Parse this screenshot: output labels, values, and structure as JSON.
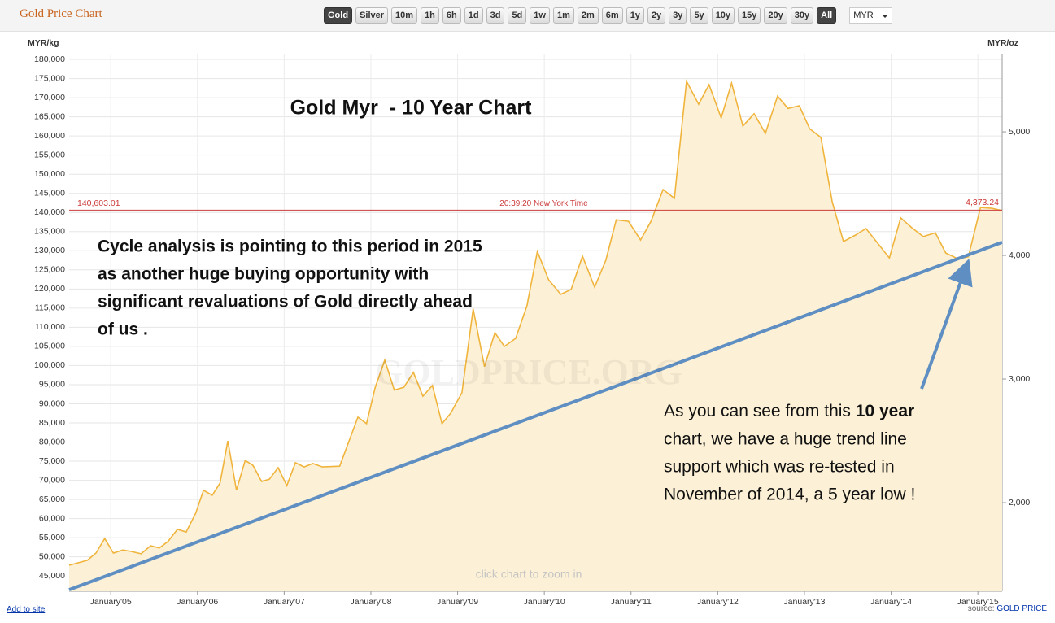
{
  "header": {
    "title": "Gold Price Chart",
    "buttons": [
      "Gold",
      "Silver",
      "10m",
      "1h",
      "6h",
      "1d",
      "3d",
      "5d",
      "1w",
      "1m",
      "2m",
      "6m",
      "1y",
      "2y",
      "3y",
      "5y",
      "10y",
      "15y",
      "20y",
      "30y",
      "All"
    ],
    "selected": [
      0,
      20
    ],
    "currency": "MYR",
    "add_link": "Add to site",
    "source_prefix": "source:",
    "source_link": "GOLD PRICE"
  },
  "chart_data": {
    "type": "area",
    "title": "Gold Myr  - 10 Year Chart",
    "y_label": "MYR/kg",
    "y2_label": "MYR/oz",
    "x": [
      2004.52,
      2004.73,
      2004.83,
      2004.93,
      2005.03,
      2005.14,
      2005.24,
      2005.35,
      2005.46,
      2005.56,
      2005.66,
      2005.77,
      2005.87,
      2005.98,
      2006.07,
      2006.17,
      2006.26,
      2006.35,
      2006.45,
      2006.55,
      2006.64,
      2006.74,
      2006.83,
      2006.93,
      2007.03,
      2007.13,
      2007.23,
      2007.33,
      2007.44,
      2007.64,
      2007.85,
      2007.95,
      2008.05,
      2008.16,
      2008.27,
      2008.38,
      2008.49,
      2008.6,
      2008.71,
      2008.82,
      2008.92,
      2009.05,
      2009.18,
      2009.31,
      2009.43,
      2009.54,
      2009.67,
      2009.8,
      2009.92,
      2010.05,
      2010.19,
      2010.31,
      2010.44,
      2010.58,
      2010.71,
      2010.83,
      2010.97,
      2011.11,
      2011.23,
      2011.37,
      2011.5,
      2011.64,
      2011.78,
      2011.9,
      2012.04,
      2012.16,
      2012.29,
      2012.42,
      2012.55,
      2012.69,
      2012.81,
      2012.94,
      2013.06,
      2013.19,
      2013.32,
      2013.45,
      2013.59,
      2013.71,
      2013.85,
      2013.98,
      2014.11,
      2014.24,
      2014.37,
      2014.51,
      2014.63,
      2014.77,
      2014.89,
      2015.03,
      2015.16,
      2015.28
    ],
    "values": [
      47800,
      49100,
      51000,
      54800,
      51000,
      51800,
      51400,
      50800,
      52900,
      52300,
      54000,
      57200,
      56500,
      61400,
      67400,
      66100,
      69300,
      80300,
      67400,
      75200,
      73900,
      69700,
      70300,
      73300,
      68600,
      74600,
      73500,
      74400,
      73500,
      73700,
      86500,
      84800,
      94300,
      101400,
      93600,
      94300,
      98200,
      92000,
      94800,
      84800,
      87500,
      92900,
      114800,
      99700,
      108600,
      105000,
      107100,
      115600,
      129800,
      122400,
      118600,
      119900,
      128600,
      120500,
      127500,
      138100,
      137700,
      132800,
      137700,
      146000,
      143700,
      174300,
      168300,
      173400,
      164700,
      173800,
      162600,
      165800,
      160700,
      170400,
      167200,
      167900,
      161900,
      159600,
      142800,
      132400,
      134100,
      135800,
      131800,
      128100,
      138600,
      136000,
      133700,
      134700,
      129400,
      127900,
      128400,
      141300,
      141100,
      140500
    ],
    "color": "#f0b43c",
    "fill": "#fcf1d6",
    "xlim": [
      2004.52,
      2015.28
    ],
    "xticks": [
      {
        "value": 2005,
        "label": "January'05"
      },
      {
        "value": 2006,
        "label": "January'06"
      },
      {
        "value": 2007,
        "label": "January'07"
      },
      {
        "value": 2008,
        "label": "January'08"
      },
      {
        "value": 2009,
        "label": "January'09"
      },
      {
        "value": 2010,
        "label": "January'10"
      },
      {
        "value": 2011,
        "label": "January'11"
      },
      {
        "value": 2012,
        "label": "January'12"
      },
      {
        "value": 2013,
        "label": "January'13"
      },
      {
        "value": 2014,
        "label": "January'14"
      },
      {
        "value": 2015,
        "label": "January'15"
      }
    ],
    "ylim": [
      41000,
      181500
    ],
    "yticks": [
      {
        "value": 45000,
        "label": "45,000"
      },
      {
        "value": 50000,
        "label": "50,000"
      },
      {
        "value": 55000,
        "label": "55,000"
      },
      {
        "value": 60000,
        "label": "60,000"
      },
      {
        "value": 65000,
        "label": "65,000"
      },
      {
        "value": 70000,
        "label": "70,000"
      },
      {
        "value": 75000,
        "label": "75,000"
      },
      {
        "value": 80000,
        "label": "80,000"
      },
      {
        "value": 85000,
        "label": "85,000"
      },
      {
        "value": 90000,
        "label": "90,000"
      },
      {
        "value": 95000,
        "label": "95,000"
      },
      {
        "value": 100000,
        "label": "100,000"
      },
      {
        "value": 105000,
        "label": "105,000"
      },
      {
        "value": 110000,
        "label": "110,000"
      },
      {
        "value": 115000,
        "label": "115,000"
      },
      {
        "value": 120000,
        "label": "120,000"
      },
      {
        "value": 125000,
        "label": "125,000"
      },
      {
        "value": 130000,
        "label": "130,000"
      },
      {
        "value": 135000,
        "label": "135,000"
      },
      {
        "value": 140000,
        "label": "140,000"
      },
      {
        "value": 145000,
        "label": "145,000"
      },
      {
        "value": 150000,
        "label": "150,000"
      },
      {
        "value": 155000,
        "label": "155,000"
      },
      {
        "value": 160000,
        "label": "160,000"
      },
      {
        "value": 165000,
        "label": "165,000"
      },
      {
        "value": 170000,
        "label": "170,000"
      },
      {
        "value": 175000,
        "label": "175,000"
      },
      {
        "value": 180000,
        "label": "180,000"
      }
    ],
    "y2lim": [
      1283,
      5632
    ],
    "y2ticks": [
      {
        "value": 2000,
        "label": "2,000"
      },
      {
        "value": 3000,
        "label": "3,000"
      },
      {
        "value": 4000,
        "label": "4,000"
      },
      {
        "value": 5000,
        "label": "5,000"
      }
    ],
    "grid": true,
    "reference_line": {
      "value": 140603.01,
      "label": "140,603.01",
      "y2_value": 4373.24,
      "y2_label": "4,373.24",
      "center_label": "20:39:20 New York Time",
      "color": "#cc3b3b"
    },
    "trend_line": {
      "x": [
        2004.52,
        2015.28
      ],
      "values": [
        41400,
        132200
      ],
      "color": "#5f8fc2"
    },
    "annotation_left": [
      "Cycle analysis is pointing to this period in 2015",
      "as another huge buying opportunity with",
      "significant revaluations of Gold directly ahead",
      "of us ."
    ],
    "annotation_right": {
      "first_line": "As you can see from this",
      "first_bold": "10 year",
      "lines": [
        "chart, we have a huge trend line",
        "support which was re-tested in",
        "November of 2014, a 5 year low !"
      ]
    },
    "watermark": "GOLDPRICE.ORG",
    "hint": "click chart to zoom in"
  }
}
